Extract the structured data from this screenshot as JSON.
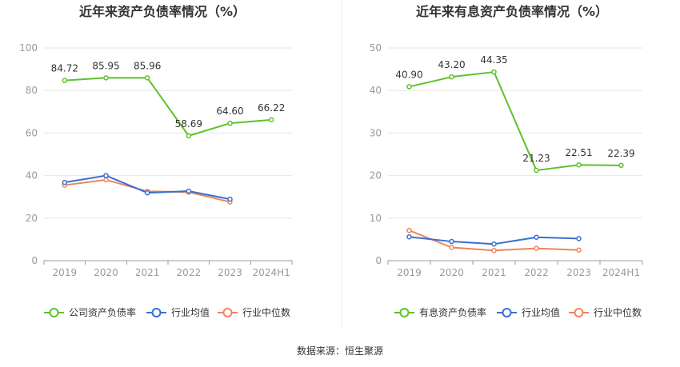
{
  "source_label": "数据来源：恒生聚源",
  "colors": {
    "company": "#5cc22a",
    "industry_avg": "#3a6fd1",
    "industry_median": "#f0845c",
    "grid": "#e6e6e6",
    "axis": "#999999"
  },
  "chart_data": [
    {
      "type": "line",
      "title": "近年来资产负债率情况（%）",
      "categories": [
        "2019",
        "2020",
        "2021",
        "2022",
        "2023",
        "2024H1"
      ],
      "ylim": [
        0,
        100
      ],
      "yticks": [
        0,
        20,
        40,
        60,
        80,
        100
      ],
      "grid": true,
      "legend_position": "bottom",
      "series": [
        {
          "name": "公司资产负债率",
          "values": [
            84.72,
            85.95,
            85.96,
            58.69,
            64.6,
            66.22
          ],
          "labels": [
            "84.72",
            "85.95",
            "85.96",
            "58.69",
            "64.60",
            "66.22"
          ],
          "show_labels": true
        },
        {
          "name": "行业均值",
          "values": [
            36.8,
            40.0,
            31.9,
            32.7,
            28.9,
            null
          ],
          "show_labels": false
        },
        {
          "name": "行业中位数",
          "values": [
            35.5,
            38.0,
            32.6,
            32.2,
            27.6,
            null
          ],
          "show_labels": false
        }
      ]
    },
    {
      "type": "line",
      "title": "近年来有息资产负债率情况（%）",
      "categories": [
        "2019",
        "2020",
        "2021",
        "2022",
        "2023",
        "2024H1"
      ],
      "ylim": [
        0,
        50
      ],
      "yticks": [
        0,
        10,
        20,
        30,
        40,
        50
      ],
      "grid": true,
      "legend_position": "bottom",
      "series": [
        {
          "name": "有息资产负债率",
          "values": [
            40.9,
            43.2,
            44.35,
            21.23,
            22.51,
            22.39
          ],
          "labels": [
            "40.90",
            "43.20",
            "44.35",
            "21.23",
            "22.51",
            "22.39"
          ],
          "show_labels": true
        },
        {
          "name": "行业均值",
          "values": [
            5.6,
            4.5,
            3.9,
            5.5,
            5.2,
            null
          ],
          "show_labels": false
        },
        {
          "name": "行业中位数",
          "values": [
            7.1,
            3.1,
            2.4,
            2.9,
            2.5,
            null
          ],
          "show_labels": false
        }
      ]
    }
  ]
}
